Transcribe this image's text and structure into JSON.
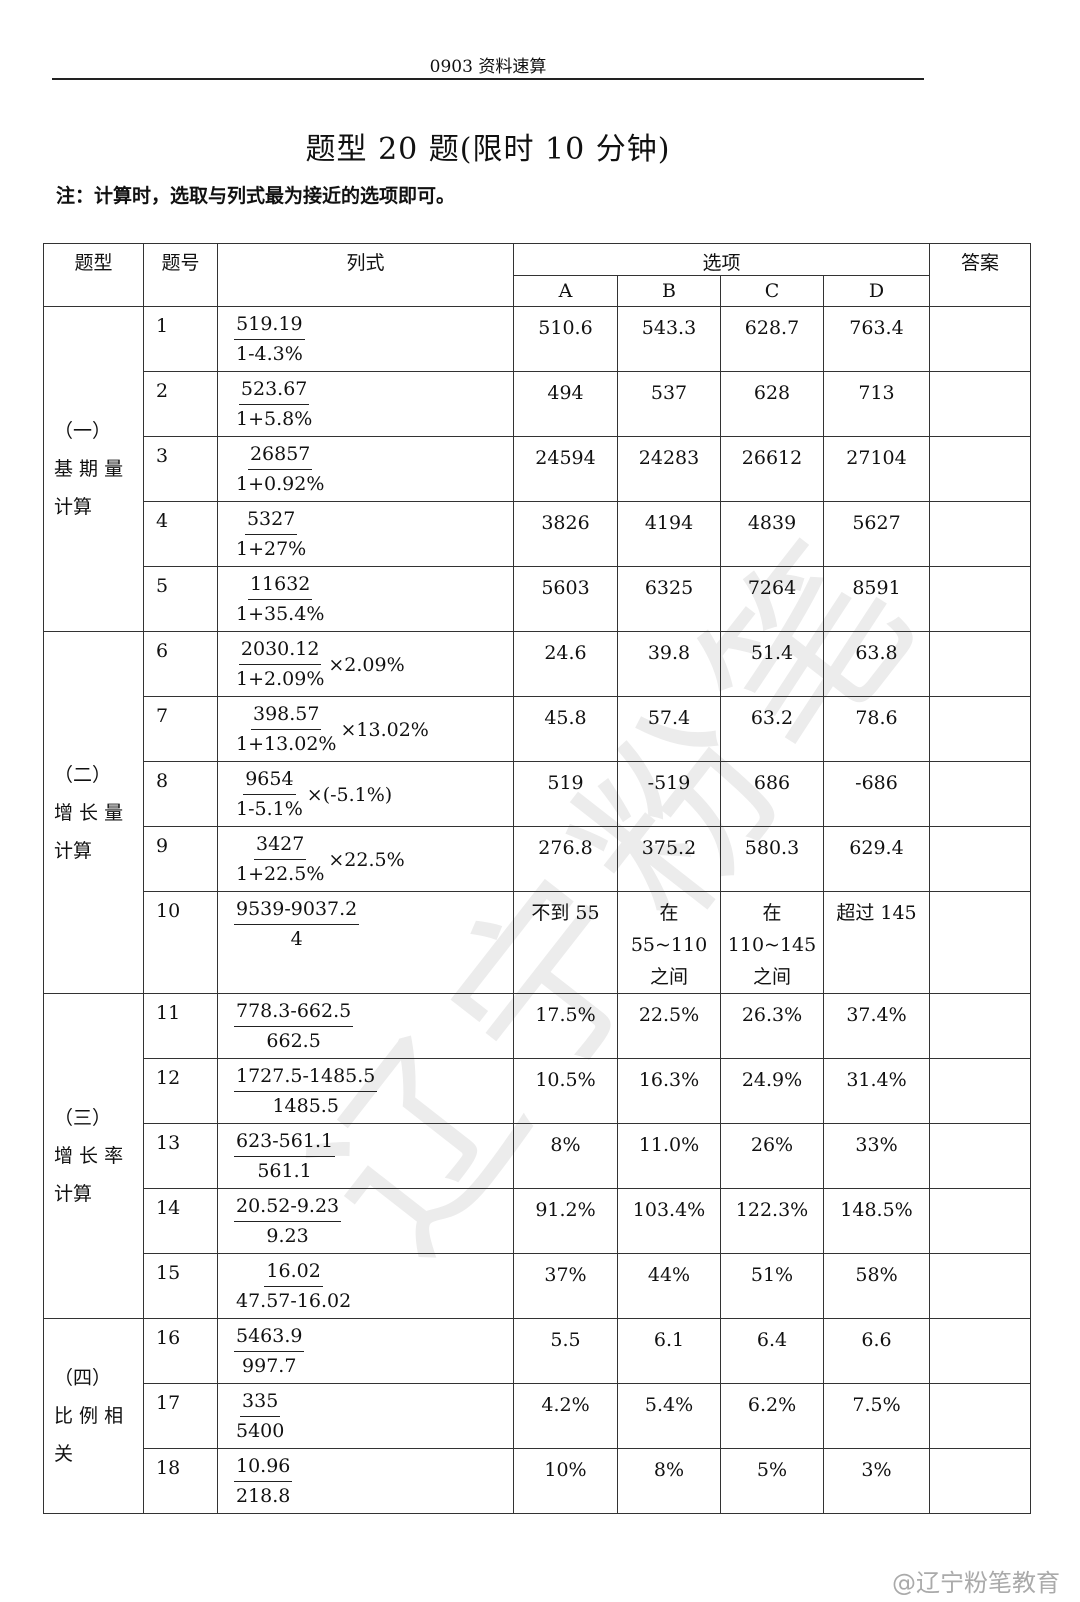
{
  "header": "0903 资料速算",
  "title": "题型 20 题(限时 10 分钟)",
  "note": "注：计算时，选取与列式最为接近的选项即可。",
  "watermark": "辽宁粉笔",
  "columns": {
    "type": "题型",
    "number": "题号",
    "formula": "列式",
    "options": "选项",
    "answer": "答案",
    "a": "A",
    "b": "B",
    "c": "C",
    "d": "D"
  },
  "categories": [
    {
      "lines": [
        "（一）",
        "基 期 量",
        "计算"
      ]
    },
    {
      "lines": [
        "（二）",
        "增 长 量",
        "计算"
      ]
    },
    {
      "lines": [
        "（三）",
        "增 长 率",
        "计算"
      ]
    },
    {
      "lines": [
        "（四）",
        "比 例 相",
        "关"
      ]
    }
  ],
  "rows": [
    {
      "num": "1",
      "numr": "519.19",
      "den": "1-4.3%",
      "mult": "",
      "a": "510.6",
      "b": "543.3",
      "c": "628.7",
      "d": "763.4"
    },
    {
      "num": "2",
      "numr": "523.67",
      "den": "1+5.8%",
      "mult": "",
      "a": "494",
      "b": "537",
      "c": "628",
      "d": "713"
    },
    {
      "num": "3",
      "numr": "26857",
      "den": "1+0.92%",
      "mult": "",
      "a": "24594",
      "b": "24283",
      "c": "26612",
      "d": "27104"
    },
    {
      "num": "4",
      "numr": "5327",
      "den": "1+27%",
      "mult": "",
      "a": "3826",
      "b": "4194",
      "c": "4839",
      "d": "5627"
    },
    {
      "num": "5",
      "numr": "11632",
      "den": "1+35.4%",
      "mult": "",
      "a": "5603",
      "b": "6325",
      "c": "7264",
      "d": "8591"
    },
    {
      "num": "6",
      "numr": "2030.12",
      "den": "1+2.09%",
      "mult": "×2.09%",
      "a": "24.6",
      "b": "39.8",
      "c": "51.4",
      "d": "63.8"
    },
    {
      "num": "7",
      "numr": "398.57",
      "den": "1+13.02%",
      "mult": "×13.02%",
      "a": "45.8",
      "b": "57.4",
      "c": "63.2",
      "d": "78.6"
    },
    {
      "num": "8",
      "numr": "9654",
      "den": "1-5.1%",
      "mult": "×(-5.1%)",
      "a": "519",
      "b": "-519",
      "c": "686",
      "d": "-686"
    },
    {
      "num": "9",
      "numr": "3427",
      "den": "1+22.5%",
      "mult": "×22.5%",
      "a": "276.8",
      "b": "375.2",
      "c": "580.3",
      "d": "629.4"
    },
    {
      "num": "10",
      "numr": "9539-9037.2",
      "den": "4",
      "mult": "",
      "a": "不到 55",
      "b": "在\n55~110\n之间",
      "c": "在\n110~145\n之间",
      "d": "超过 145"
    },
    {
      "num": "11",
      "numr": "778.3-662.5",
      "den": "662.5",
      "mult": "",
      "a": "17.5%",
      "b": "22.5%",
      "c": "26.3%",
      "d": "37.4%"
    },
    {
      "num": "12",
      "numr": "1727.5-1485.5",
      "den": "1485.5",
      "mult": "",
      "a": "10.5%",
      "b": "16.3%",
      "c": "24.9%",
      "d": "31.4%"
    },
    {
      "num": "13",
      "numr": "623-561.1",
      "den": "561.1",
      "mult": "",
      "a": "8%",
      "b": "11.0%",
      "c": "26%",
      "d": "33%"
    },
    {
      "num": "14",
      "numr": "20.52-9.23",
      "den": "9.23",
      "mult": "",
      "a": "91.2%",
      "b": "103.4%",
      "c": "122.3%",
      "d": "148.5%"
    },
    {
      "num": "15",
      "numr": "16.02",
      "den": "47.57-16.02",
      "mult": "",
      "a": "37%",
      "b": "44%",
      "c": "51%",
      "d": "58%"
    },
    {
      "num": "16",
      "numr": "5463.9",
      "den": "997.7",
      "mult": "",
      "a": "5.5",
      "b": "6.1",
      "c": "6.4",
      "d": "6.6"
    },
    {
      "num": "17",
      "numr": "335",
      "den": "5400",
      "mult": "",
      "a": "4.2%",
      "b": "5.4%",
      "c": "6.2%",
      "d": "7.5%"
    },
    {
      "num": "18",
      "numr": "10.96",
      "den": "218.8",
      "mult": "",
      "a": "10%",
      "b": "8%",
      "c": "5%",
      "d": "3%"
    }
  ],
  "footer_watermark": "@辽宁粉笔教育"
}
